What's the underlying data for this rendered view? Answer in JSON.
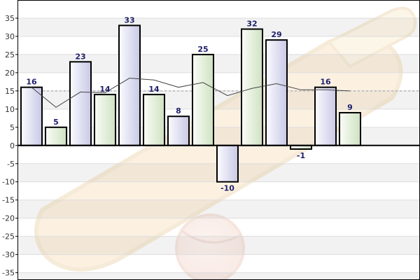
{
  "chart_data": {
    "type": "bar",
    "title": "",
    "xlabel": "",
    "ylabel": "",
    "ylim": [
      -37,
      40
    ],
    "yticks": [
      35,
      30,
      25,
      20,
      15,
      10,
      5,
      0,
      -5,
      -10,
      -15,
      -20,
      -25,
      -30,
      -35
    ],
    "values": [
      16,
      5,
      23,
      14,
      33,
      14,
      8,
      25,
      -10,
      32,
      29,
      -1,
      16,
      9
    ],
    "bar_fill_pattern": [
      "lavender",
      "green",
      "lavender",
      "green",
      "lavender",
      "green",
      "lavender",
      "green",
      "lavender",
      "green",
      "lavender",
      "green",
      "lavender",
      "green"
    ],
    "moving_average": [
      16,
      10.5,
      14.7,
      14.5,
      18.5,
      18,
      16,
      17.3,
      13.7,
      15.7,
      17,
      15.3,
      15.3,
      15
    ],
    "average_line": 15,
    "grid": true,
    "legend": "none",
    "colors": {
      "lavender_light": "#f7f7ff",
      "lavender_dark": "#c8c8e6",
      "green_light": "#f6fbf2",
      "green_dark": "#d0e2c4",
      "bar_stroke": "#000000",
      "label": "#1f1f6b",
      "zero_line": "#000000",
      "average_line": "#999999",
      "trend_line": "#444444"
    }
  }
}
